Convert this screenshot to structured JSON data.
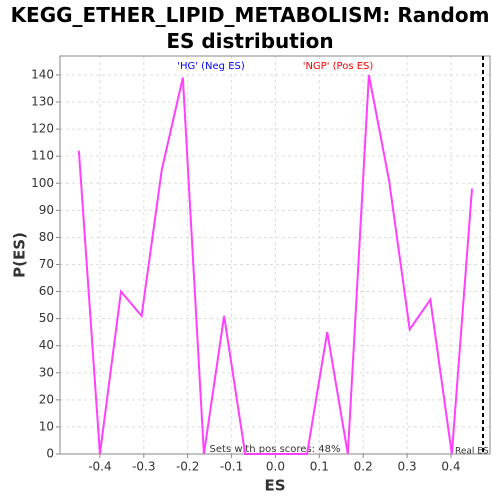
{
  "chart_data": {
    "type": "line",
    "title": "KEGG_ETHER_LIPID_METABOLISM: Random ES distribution",
    "x_label": "ES",
    "y_label": "P(ES)",
    "x": [
      -0.448,
      -0.4,
      -0.352,
      -0.305,
      -0.259,
      -0.211,
      -0.163,
      -0.117,
      -0.069,
      -0.022,
      0.025,
      0.072,
      0.118,
      0.165,
      0.213,
      0.259,
      0.306,
      0.353,
      0.402,
      0.448
    ],
    "series": [
      {
        "color": "#ff40ff",
        "values": [
          112,
          0,
          60,
          51,
          105,
          139,
          0,
          51,
          0,
          0,
          0,
          0,
          45,
          0,
          140,
          101,
          46,
          57,
          0,
          98
        ]
      }
    ],
    "xlim": [
      -0.491,
      0.489
    ],
    "ylim": [
      0,
      147
    ],
    "xticks": [
      -0.4,
      -0.3,
      -0.2,
      -0.1,
      {
        "value": 0,
        "label": "0.0"
      },
      0.1,
      0.2,
      0.3,
      0.4
    ],
    "yticks": [
      0,
      10,
      20,
      30,
      40,
      50,
      60,
      70,
      80,
      90,
      100,
      110,
      120,
      130,
      140
    ],
    "grid": true,
    "real_es": 0.473,
    "real_es_label": "Real ES (",
    "neg_label": "'HG' (Neg ES)",
    "pos_label": "'NGP' (Pos ES)",
    "pos_scores_label": "Sets with pos scores: 48%"
  }
}
